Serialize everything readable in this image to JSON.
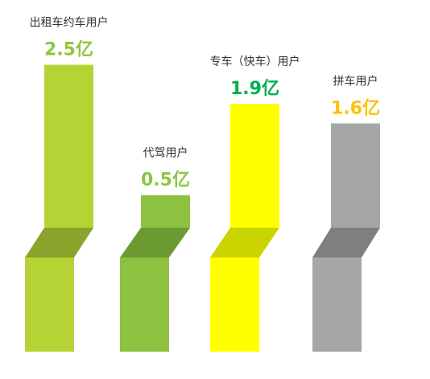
{
  "chart_data": {
    "type": "bar",
    "unit": "亿",
    "categories": [
      "出租车约车用户",
      "代驾用户",
      "专车（快车）用户",
      "拼车用户"
    ],
    "values": [
      2.5,
      0.5,
      1.9,
      1.6
    ],
    "value_labels": [
      "2.5亿",
      "0.5亿",
      "1.9亿",
      "1.6亿"
    ],
    "colors": {
      "top": [
        "#b5d334",
        "#8dc140",
        "#ffff00",
        "#a6a6a6"
      ],
      "fold": [
        "#8aa32a",
        "#6b9a32",
        "#c9d400",
        "#7f7f7f"
      ],
      "bottom": [
        "#b5d334",
        "#8dc140",
        "#ffff00",
        "#a6a6a6"
      ],
      "value_text": [
        "#8dc63f",
        "#8dc63f",
        "#00b050",
        "#ffc000"
      ]
    },
    "title": "",
    "xlabel": "",
    "ylabel": "",
    "grid": false,
    "legend": "none"
  }
}
